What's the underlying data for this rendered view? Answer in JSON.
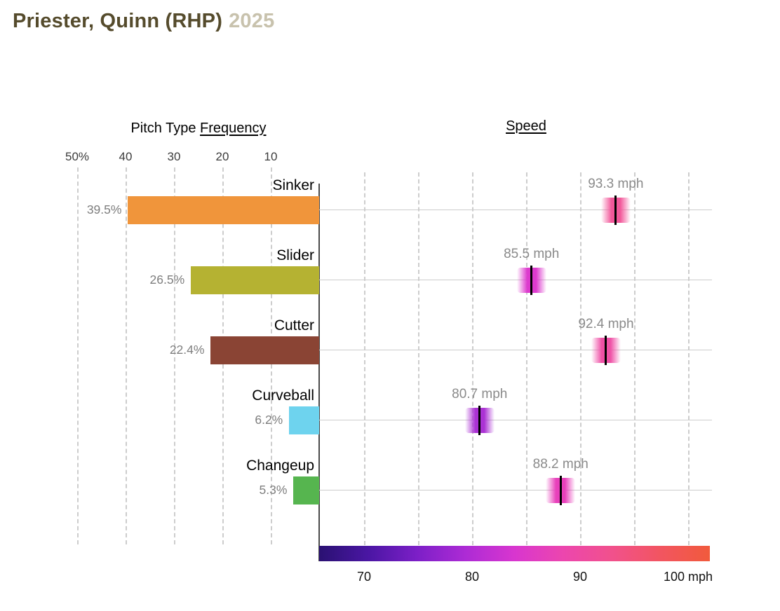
{
  "title": {
    "player": "Priester, Quinn (RHP)",
    "year": "2025"
  },
  "frequency_chart": {
    "title_prefix": "Pitch Type",
    "title_underlined": "Frequency",
    "axis_ticks": [
      {
        "label": "50%",
        "value": 50
      },
      {
        "label": "40",
        "value": 40
      },
      {
        "label": "30",
        "value": 30
      },
      {
        "label": "20",
        "value": 20
      },
      {
        "label": "10",
        "value": 10
      }
    ]
  },
  "speed_chart": {
    "title": "Speed",
    "axis_ticks": [
      {
        "label": "70",
        "value": 70
      },
      {
        "label": "80",
        "value": 80
      },
      {
        "label": "90",
        "value": 90
      },
      {
        "label": "100 mph",
        "value": 100
      }
    ],
    "gridline_values": [
      70,
      75,
      80,
      85,
      90,
      95,
      100
    ],
    "gradient_colors": [
      "#2a1172",
      "#4a16a3",
      "#7c1fc7",
      "#ad2bd5",
      "#d836cf",
      "#ec46ae",
      "#f1518c",
      "#f25560",
      "#f15a3c"
    ]
  },
  "pitches": [
    {
      "name": "Sinker",
      "frequency_pct": 39.5,
      "frequency_label": "39.5%",
      "bar_color": "#f0953b",
      "speed_mph": 93.3,
      "speed_label": "93.3 mph",
      "speed_color": "#f2589a"
    },
    {
      "name": "Slider",
      "frequency_pct": 26.5,
      "frequency_label": "26.5%",
      "bar_color": "#b5b232",
      "speed_mph": 85.5,
      "speed_label": "85.5 mph",
      "speed_color": "#dd3bce"
    },
    {
      "name": "Cutter",
      "frequency_pct": 22.4,
      "frequency_label": "22.4%",
      "bar_color": "#8a4434",
      "speed_mph": 92.4,
      "speed_label": "92.4 mph",
      "speed_color": "#ef51a6"
    },
    {
      "name": "Curveball",
      "frequency_pct": 6.2,
      "frequency_label": "6.2%",
      "bar_color": "#6ed3ee",
      "speed_mph": 80.7,
      "speed_label": "80.7 mph",
      "speed_color": "#ab32d4"
    },
    {
      "name": "Changeup",
      "frequency_pct": 5.3,
      "frequency_label": "5.3%",
      "bar_color": "#56b54f",
      "speed_mph": 88.2,
      "speed_label": "88.2 mph",
      "speed_color": "#e840bb"
    }
  ],
  "chart_data": [
    {
      "type": "bar",
      "orientation": "horizontal-left",
      "title": "Pitch Type Frequency",
      "categories": [
        "Sinker",
        "Slider",
        "Cutter",
        "Curveball",
        "Changeup"
      ],
      "values": [
        39.5,
        26.5,
        22.4,
        6.2,
        5.3
      ],
      "unit": "%",
      "xlabel": "Frequency (%)",
      "xlim": [
        0,
        50
      ],
      "xticks": [
        "50%",
        "40",
        "30",
        "20",
        "10"
      ],
      "grid": "dashed-vertical",
      "bar_colors": [
        "#f0953b",
        "#b5b232",
        "#8a4434",
        "#6ed3ee",
        "#56b54f"
      ]
    },
    {
      "type": "scatter",
      "title": "Speed",
      "categories": [
        "Sinker",
        "Slider",
        "Cutter",
        "Curveball",
        "Changeup"
      ],
      "values": [
        93.3,
        85.5,
        92.4,
        80.7,
        88.2
      ],
      "unit": "mph",
      "xlabel": "Speed (mph)",
      "xlim": [
        66,
        102
      ],
      "xticks": [
        70,
        80,
        90,
        100
      ],
      "grid": "dashed-vertical",
      "legend": "gradient colorbar bottom, navy-purple-magenta-pink-red mapped to mph"
    }
  ]
}
